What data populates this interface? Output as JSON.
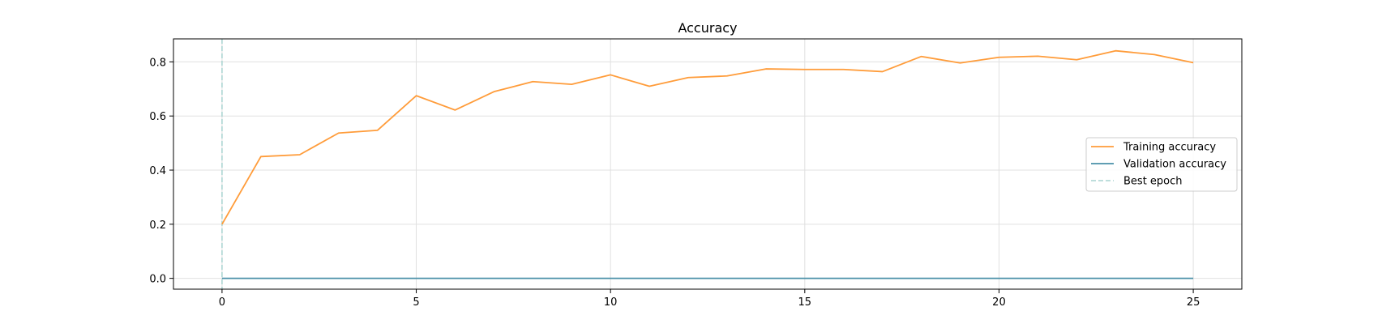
{
  "chart_data": {
    "type": "line",
    "title": "Accuracy",
    "xlabel": "",
    "ylabel": "",
    "xlim": [
      -1.25,
      26.25
    ],
    "ylim": [
      -0.04,
      0.885
    ],
    "xticks": [
      0,
      5,
      10,
      15,
      20,
      25
    ],
    "yticks": [
      0.0,
      0.2,
      0.4,
      0.6,
      0.8
    ],
    "grid": true,
    "legend_position": "center-right",
    "x": [
      0,
      1,
      2,
      3,
      4,
      5,
      6,
      7,
      8,
      9,
      10,
      11,
      12,
      13,
      14,
      15,
      16,
      17,
      18,
      19,
      20,
      21,
      22,
      23,
      24,
      25
    ],
    "series": [
      {
        "name": "Training accuracy",
        "color": "#ff9c3a",
        "values": [
          0.2,
          0.45,
          0.457,
          0.537,
          0.547,
          0.675,
          0.622,
          0.69,
          0.727,
          0.717,
          0.752,
          0.71,
          0.742,
          0.748,
          0.774,
          0.772,
          0.772,
          0.764,
          0.82,
          0.796,
          0.817,
          0.821,
          0.808,
          0.841,
          0.827,
          0.797
        ]
      },
      {
        "name": "Validation accuracy",
        "color": "#4a90a8",
        "values": [
          0,
          0,
          0,
          0,
          0,
          0,
          0,
          0,
          0,
          0,
          0,
          0,
          0,
          0,
          0,
          0,
          0,
          0,
          0,
          0,
          0,
          0,
          0,
          0,
          0,
          0
        ]
      }
    ],
    "vlines": [
      {
        "name": "Best epoch",
        "x": 0,
        "color": "#a8d4d0",
        "style": "dashed"
      }
    ]
  }
}
